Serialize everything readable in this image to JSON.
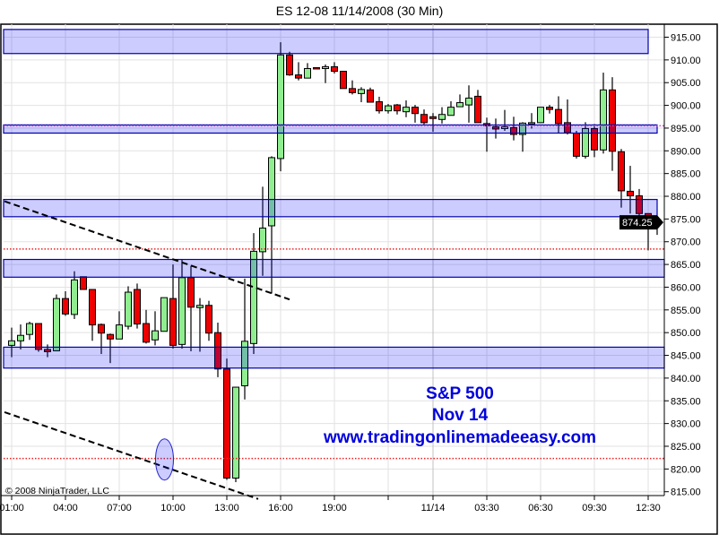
{
  "title": "ES 12-08  11/14/2008 (30 Min)",
  "copyright": "© 2008 NinjaTrader, LLC",
  "annotation": {
    "line1": "S&P 500",
    "line2": "Nov 14",
    "line3": "www.tradingonlinemadeeasy.com"
  },
  "last_price_label": "874.25",
  "colors": {
    "up": "#90ee90",
    "down": "#ee0000",
    "band_fill": "#ccccff",
    "band_border": "#0000aa",
    "dotted_red": "#ee2222",
    "dotted_purple": "#cc44cc",
    "annotation": "#0000dd"
  },
  "chart_data": {
    "type": "candlestick",
    "title": "ES 12-08  11/14/2008 (30 Min)",
    "ylim": [
      815,
      915
    ],
    "y_ticks": [
      "915.00",
      "910.00",
      "905.00",
      "900.00",
      "895.00",
      "890.00",
      "885.00",
      "880.00",
      "875.00",
      "870.00",
      "865.00",
      "860.00",
      "855.00",
      "850.00",
      "845.00",
      "840.00",
      "835.00",
      "830.00",
      "825.00",
      "820.00",
      "815.00"
    ],
    "x_ticks": [
      {
        "label": "01:00",
        "bar": 0
      },
      {
        "label": "04:00",
        "bar": 6
      },
      {
        "label": "07:00",
        "bar": 12
      },
      {
        "label": "10:00",
        "bar": 18
      },
      {
        "label": "13:00",
        "bar": 24
      },
      {
        "label": "16:00",
        "bar": 30
      },
      {
        "label": "19:00",
        "bar": 36
      },
      {
        "label": "",
        "bar": 42
      },
      {
        "label": "11/14",
        "bar": 47
      },
      {
        "label": "03:30",
        "bar": 53
      },
      {
        "label": "06:30",
        "bar": 59
      },
      {
        "label": "09:30",
        "bar": 65
      },
      {
        "label": "12:30",
        "bar": 71
      }
    ],
    "grid": true,
    "candles_ohlc": [
      [
        847.2,
        851.1,
        844.6,
        848.2
      ],
      [
        848.2,
        851.8,
        846.3,
        849.4
      ],
      [
        849.6,
        852.4,
        848.4,
        852.0
      ],
      [
        852.0,
        852.0,
        845.8,
        846.3
      ],
      [
        846.3,
        847.4,
        844.6,
        845.8
      ],
      [
        846.0,
        858.4,
        846.0,
        857.5
      ],
      [
        857.5,
        859.1,
        853.7,
        854.1
      ],
      [
        854.0,
        863.5,
        853.0,
        861.6
      ],
      [
        862.3,
        862.3,
        859.5,
        859.5
      ],
      [
        859.5,
        859.5,
        848.2,
        851.7
      ],
      [
        851.8,
        852.0,
        845.3,
        849.9
      ],
      [
        849.6,
        849.8,
        843.3,
        848.6
      ],
      [
        848.6,
        854.7,
        848.6,
        851.7
      ],
      [
        851.4,
        860.2,
        850.7,
        858.9
      ],
      [
        859.5,
        860.8,
        850.9,
        851.9
      ],
      [
        852.0,
        855.0,
        847.6,
        847.9
      ],
      [
        848.4,
        854.7,
        847.2,
        850.4
      ],
      [
        850.3,
        857.7,
        850.3,
        857.7
      ],
      [
        857.5,
        865.0,
        846.5,
        847.2
      ],
      [
        847.4,
        866.1,
        846.5,
        862.1
      ],
      [
        862.1,
        864.7,
        845.9,
        855.6
      ],
      [
        855.5,
        857.6,
        845.8,
        856.0
      ],
      [
        856.0,
        857.0,
        848.2,
        849.9
      ],
      [
        850.0,
        852.2,
        840.2,
        842.0
      ],
      [
        842.0,
        844.3,
        817.6,
        818.0
      ],
      [
        818.0,
        838.1,
        817.1,
        838.0
      ],
      [
        838.3,
        861.9,
        835.3,
        848.1
      ],
      [
        847.6,
        871.9,
        845.3,
        867.9
      ],
      [
        867.8,
        882.1,
        862.5,
        873.0
      ],
      [
        873.5,
        888.8,
        858.6,
        888.5
      ],
      [
        888.3,
        913.9,
        885.5,
        911.1
      ],
      [
        911.1,
        911.8,
        906.5,
        906.7
      ],
      [
        906.7,
        909.5,
        905.5,
        906.0
      ],
      [
        906.0,
        909.3,
        906.0,
        908.1
      ],
      [
        908.3,
        908.3,
        908.2,
        908.2
      ],
      [
        908.1,
        909.0,
        904.9,
        908.5
      ],
      [
        908.5,
        909.5,
        907.0,
        907.5
      ],
      [
        907.5,
        907.5,
        903.7,
        903.7
      ],
      [
        903.7,
        905.5,
        902.4,
        902.8
      ],
      [
        902.6,
        904.0,
        900.7,
        903.5
      ],
      [
        903.4,
        903.9,
        900.7,
        900.7
      ],
      [
        900.8,
        901.9,
        898.2,
        898.8
      ],
      [
        898.8,
        900.3,
        898.2,
        899.9
      ],
      [
        900.1,
        900.3,
        898.0,
        898.8
      ],
      [
        898.6,
        901.1,
        897.4,
        899.6
      ],
      [
        899.6,
        900.1,
        896.2,
        898.2
      ],
      [
        898.0,
        899.1,
        895.8,
        896.2
      ],
      [
        897.5,
        898.3,
        894.2,
        897.1
      ],
      [
        896.9,
        899.6,
        896.0,
        898.0
      ],
      [
        897.8,
        900.9,
        897.8,
        899.6
      ],
      [
        899.7,
        902.4,
        899.7,
        900.6
      ],
      [
        900.1,
        904.4,
        896.2,
        901.6
      ],
      [
        902.0,
        903.4,
        896.2,
        896.2
      ],
      [
        896.0,
        897.3,
        889.8,
        895.5
      ],
      [
        895.3,
        897.1,
        892.7,
        894.8
      ],
      [
        894.9,
        899.0,
        894.4,
        895.3
      ],
      [
        895.1,
        897.5,
        892.3,
        893.6
      ],
      [
        893.6,
        896.3,
        889.8,
        896.1
      ],
      [
        896.2,
        898.3,
        894.9,
        896.2
      ],
      [
        896.2,
        899.6,
        896.2,
        899.6
      ],
      [
        899.6,
        900.1,
        898.2,
        899.1
      ],
      [
        899.1,
        902.0,
        894.0,
        896.0
      ],
      [
        896.2,
        901.3,
        893.6,
        894.0
      ],
      [
        893.9,
        894.4,
        888.3,
        888.8
      ],
      [
        888.8,
        896.3,
        888.3,
        894.9
      ],
      [
        894.9,
        895.9,
        888.6,
        890.2
      ],
      [
        890.2,
        907.2,
        889.4,
        903.4
      ],
      [
        903.4,
        906.2,
        885.6,
        889.9
      ],
      [
        889.8,
        890.4,
        877.5,
        881.2
      ],
      [
        881.1,
        886.7,
        876.2,
        880.1
      ],
      [
        880.1,
        881.6,
        874.3,
        876.2
      ],
      [
        876.2,
        876.2,
        868.1,
        874.9
      ],
      [
        874.5,
        874.5,
        871.5,
        874.25
      ]
    ],
    "zones": [
      {
        "low": 911.4,
        "high": 916.7
      },
      {
        "low": 893.9,
        "high": 895.7
      },
      {
        "low": 875.5,
        "high": 879.3
      },
      {
        "low": 862.2,
        "high": 866.1
      },
      {
        "low": 842.2,
        "high": 846.8
      }
    ],
    "horizontal_lines": [
      {
        "price": 895.5,
        "style": "dotted",
        "color": "#cc44cc"
      },
      {
        "price": 868.4,
        "style": "dotted",
        "color": "#ee2222"
      },
      {
        "price": 822.3,
        "style": "dotted",
        "color": "#ee2222"
      }
    ],
    "trend_lines": [
      {
        "style": "dashed",
        "from": {
          "bar": -0.8,
          "price": 878.9
        },
        "to": {
          "bar": 31,
          "price": 857.3
        }
      },
      {
        "style": "dashed",
        "from": {
          "bar": -0.8,
          "price": 832.5
        },
        "to": {
          "bar": 27.5,
          "price": 813.4
        }
      }
    ],
    "ellipse": {
      "bar": 17,
      "price": 822.1
    }
  }
}
